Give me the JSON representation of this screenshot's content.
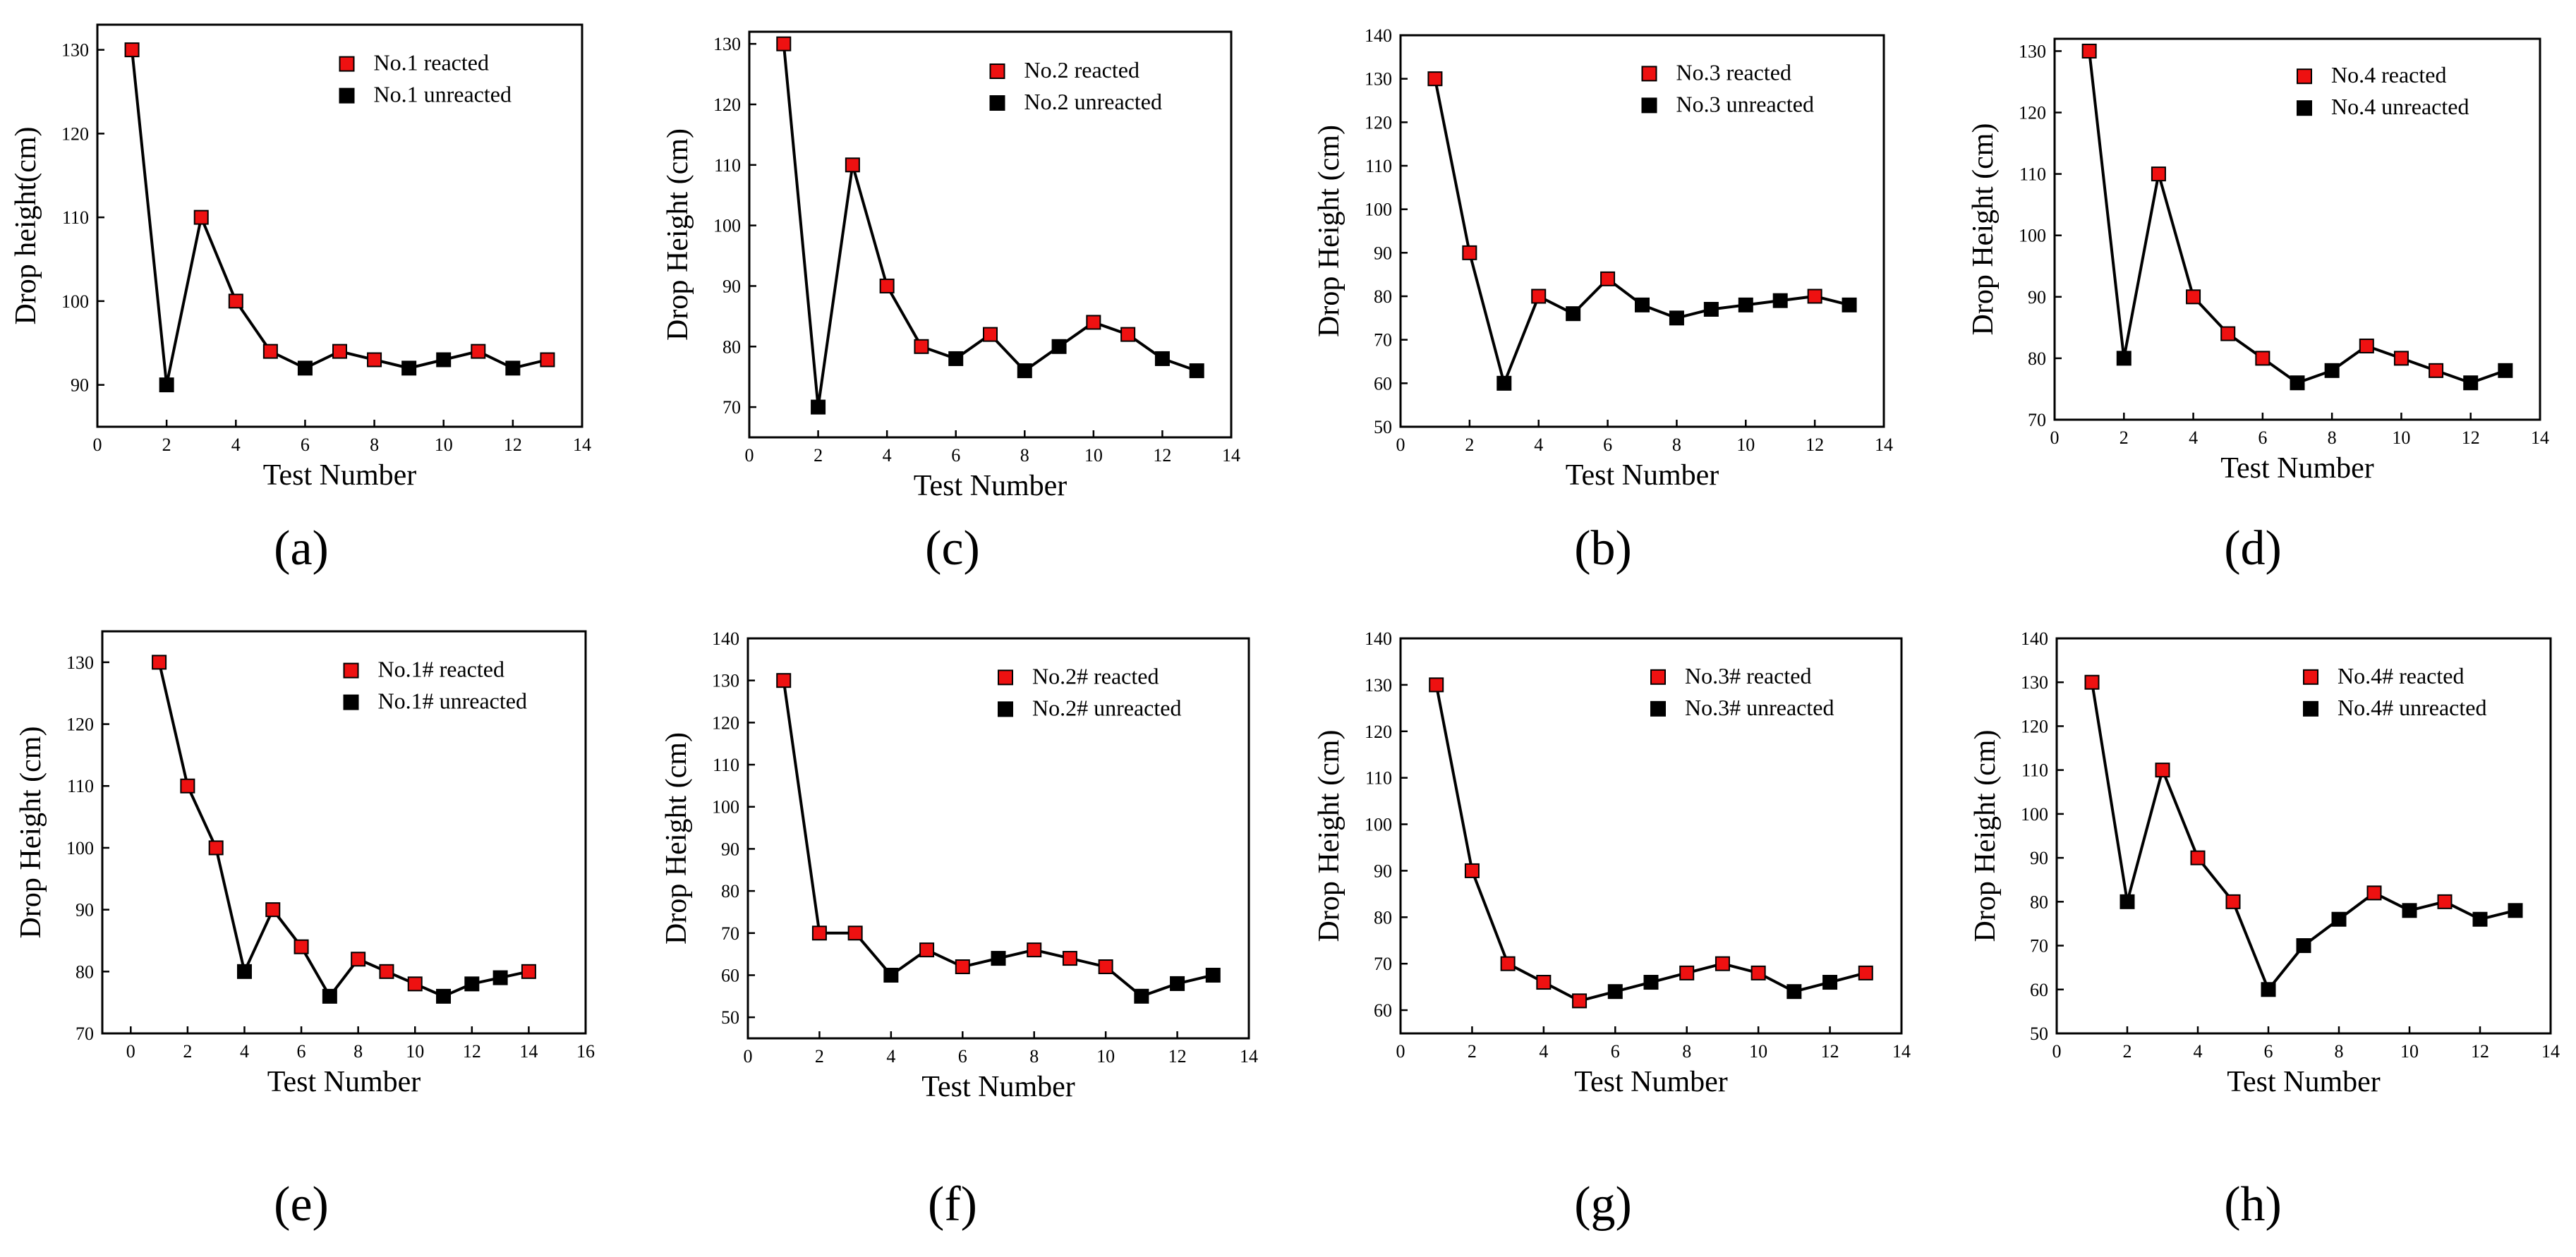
{
  "colors": {
    "reacted": "#ee1111",
    "unreacted": "#000000",
    "axis": "#000000"
  },
  "chart_data": [
    {
      "panel": "a",
      "caption": "(a)",
      "type": "line",
      "xlabel": "Test Number",
      "ylabel": "Drop height(cm)",
      "xlim": [
        0,
        14
      ],
      "ylim": [
        85,
        133
      ],
      "xticks": [
        0,
        2,
        4,
        6,
        8,
        10,
        12,
        14
      ],
      "yticks": [
        90,
        100,
        110,
        120,
        130
      ],
      "xtick_labels": [
        "0",
        "2",
        "4",
        "6",
        "8",
        "10",
        "12",
        "14"
      ],
      "ytick_labels": [
        "90",
        "100",
        "110",
        "120",
        "130"
      ],
      "legend": {
        "reacted": "No.1 reacted",
        "unreacted": "No.1 unreacted"
      },
      "x": [
        1,
        2,
        3,
        4,
        5,
        6,
        7,
        8,
        9,
        10,
        11,
        12,
        13
      ],
      "y": [
        130,
        90,
        110,
        100,
        94,
        92,
        94,
        93,
        92,
        93,
        94,
        92,
        93
      ],
      "status": [
        "r",
        "u",
        "r",
        "r",
        "r",
        "u",
        "r",
        "r",
        "u",
        "u",
        "r",
        "u",
        "r"
      ]
    },
    {
      "panel": "c",
      "caption": "(c)",
      "type": "line",
      "xlabel": "Test Number",
      "ylabel": "Drop Height (cm)",
      "xlim": [
        0,
        14
      ],
      "ylim": [
        65,
        132
      ],
      "xticks": [
        0,
        2,
        4,
        6,
        8,
        10,
        12,
        14
      ],
      "yticks": [
        70,
        80,
        90,
        100,
        110,
        120,
        130
      ],
      "xtick_labels": [
        "0",
        "2",
        "4",
        "6",
        "8",
        "10",
        "12",
        "14"
      ],
      "ytick_labels": [
        "70",
        "80",
        "90",
        "100",
        "110",
        "120",
        "130"
      ],
      "legend": {
        "reacted": "No.2 reacted",
        "unreacted": "No.2 unreacted"
      },
      "x": [
        1,
        2,
        3,
        4,
        5,
        6,
        7,
        8,
        9,
        10,
        11,
        12,
        13
      ],
      "y": [
        130,
        70,
        110,
        90,
        80,
        78,
        82,
        76,
        80,
        84,
        82,
        78,
        76
      ],
      "status": [
        "r",
        "u",
        "r",
        "r",
        "r",
        "u",
        "r",
        "u",
        "u",
        "r",
        "r",
        "u",
        "u"
      ]
    },
    {
      "panel": "b",
      "caption": "(b)",
      "type": "line",
      "xlabel": "Test Number",
      "ylabel": "Drop Height (cm)",
      "xlim": [
        0,
        14
      ],
      "ylim": [
        50,
        140
      ],
      "xticks": [
        0,
        2,
        4,
        6,
        8,
        10,
        12,
        14
      ],
      "yticks": [
        50,
        60,
        70,
        80,
        90,
        100,
        110,
        120,
        130,
        140
      ],
      "xtick_labels": [
        "0",
        "2",
        "4",
        "6",
        "8",
        "10",
        "12",
        "14"
      ],
      "ytick_labels": [
        "50",
        "60",
        "70",
        "80",
        "90",
        "100",
        "110",
        "120",
        "130",
        "140"
      ],
      "legend": {
        "reacted": "No.3 reacted",
        "unreacted": "No.3 unreacted"
      },
      "x": [
        1,
        2,
        3,
        4,
        5,
        6,
        7,
        8,
        9,
        10,
        11,
        12,
        13
      ],
      "y": [
        130,
        90,
        60,
        80,
        76,
        84,
        78,
        75,
        77,
        78,
        79,
        80,
        78
      ],
      "status": [
        "r",
        "r",
        "u",
        "r",
        "u",
        "r",
        "u",
        "u",
        "u",
        "u",
        "u",
        "r",
        "u"
      ]
    },
    {
      "panel": "d",
      "caption": "(d)",
      "type": "line",
      "xlabel": "Test Number",
      "ylabel": "Drop Height (cm)",
      "xlim": [
        0,
        14
      ],
      "ylim": [
        70,
        132
      ],
      "xticks": [
        0,
        2,
        4,
        6,
        8,
        10,
        12,
        14
      ],
      "yticks": [
        70,
        80,
        90,
        100,
        110,
        120,
        130
      ],
      "xtick_labels": [
        "0",
        "2",
        "4",
        "6",
        "8",
        "10",
        "12",
        "14"
      ],
      "ytick_labels": [
        "70",
        "80",
        "90",
        "100",
        "110",
        "120",
        "130"
      ],
      "legend": {
        "reacted": "No.4 reacted",
        "unreacted": "No.4 unreacted"
      },
      "x": [
        1,
        2,
        3,
        4,
        5,
        6,
        7,
        8,
        9,
        10,
        11,
        12,
        13
      ],
      "y": [
        130,
        80,
        110,
        90,
        84,
        80,
        76,
        78,
        82,
        80,
        78,
        76,
        78
      ],
      "status": [
        "r",
        "u",
        "r",
        "r",
        "r",
        "r",
        "u",
        "u",
        "r",
        "r",
        "r",
        "u",
        "u"
      ]
    },
    {
      "panel": "e",
      "caption": "(e)",
      "type": "line",
      "xlabel": "Test Number",
      "ylabel": "Drop Height (cm)",
      "xlim": [
        -1,
        16
      ],
      "ylim": [
        70,
        135
      ],
      "xticks": [
        0,
        2,
        4,
        6,
        8,
        10,
        12,
        14,
        16
      ],
      "yticks": [
        70,
        80,
        90,
        100,
        110,
        120,
        130
      ],
      "xtick_labels": [
        "0",
        "2",
        "4",
        "6",
        "8",
        "10",
        "12",
        "14",
        "16"
      ],
      "ytick_labels": [
        "70",
        "80",
        "90",
        "100",
        "110",
        "120",
        "130"
      ],
      "legend": {
        "reacted": "No.1# reacted",
        "unreacted": "No.1# unreacted"
      },
      "x": [
        1,
        2,
        3,
        4,
        5,
        6,
        7,
        8,
        9,
        10,
        11,
        12,
        13,
        14
      ],
      "y": [
        130,
        110,
        100,
        80,
        90,
        84,
        76,
        82,
        80,
        78,
        76,
        78,
        79,
        80
      ],
      "status": [
        "r",
        "r",
        "r",
        "u",
        "r",
        "r",
        "u",
        "r",
        "r",
        "r",
        "u",
        "u",
        "u",
        "r"
      ]
    },
    {
      "panel": "f",
      "caption": "(f)",
      "type": "line",
      "xlabel": "Test Number",
      "ylabel": "Drop Height (cm)",
      "xlim": [
        0,
        14
      ],
      "ylim": [
        45,
        140
      ],
      "xticks": [
        0,
        2,
        4,
        6,
        8,
        10,
        12,
        14
      ],
      "yticks": [
        50,
        60,
        70,
        80,
        90,
        100,
        110,
        120,
        130,
        140
      ],
      "xtick_labels": [
        "0",
        "2",
        "4",
        "6",
        "8",
        "10",
        "12",
        "14"
      ],
      "ytick_labels": [
        "50",
        "60",
        "70",
        "80",
        "90",
        "100",
        "110",
        "120",
        "130",
        "140"
      ],
      "legend": {
        "reacted": "No.2# reacted",
        "unreacted": "No.2# unreacted"
      },
      "x": [
        1,
        2,
        3,
        4,
        5,
        6,
        7,
        8,
        9,
        10,
        11,
        12,
        13
      ],
      "y": [
        130,
        70,
        70,
        60,
        66,
        62,
        64,
        66,
        64,
        62,
        55,
        58,
        60
      ],
      "status": [
        "r",
        "r",
        "r",
        "u",
        "r",
        "r",
        "u",
        "r",
        "r",
        "r",
        "u",
        "u",
        "u"
      ]
    },
    {
      "panel": "g",
      "caption": "(g)",
      "type": "line",
      "xlabel": "Test Number",
      "ylabel": "Drop Height (cm)",
      "xlim": [
        0,
        14
      ],
      "ylim": [
        55,
        140
      ],
      "xticks": [
        0,
        2,
        4,
        6,
        8,
        10,
        12,
        14
      ],
      "yticks": [
        60,
        70,
        80,
        90,
        100,
        110,
        120,
        130,
        140
      ],
      "xtick_labels": [
        "0",
        "2",
        "4",
        "6",
        "8",
        "10",
        "12",
        "14"
      ],
      "ytick_labels": [
        "60",
        "70",
        "80",
        "90",
        "100",
        "110",
        "120",
        "130",
        "140"
      ],
      "legend": {
        "reacted": "No.3# reacted",
        "unreacted": "No.3# unreacted"
      },
      "x": [
        1,
        2,
        3,
        4,
        5,
        6,
        7,
        8,
        9,
        10,
        11,
        12,
        13
      ],
      "y": [
        130,
        90,
        70,
        66,
        62,
        64,
        66,
        68,
        70,
        68,
        64,
        66,
        68
      ],
      "status": [
        "r",
        "r",
        "r",
        "r",
        "r",
        "u",
        "u",
        "r",
        "r",
        "r",
        "u",
        "u",
        "r"
      ]
    },
    {
      "panel": "h",
      "caption": "(h)",
      "type": "line",
      "xlabel": "Test Number",
      "ylabel": "Drop Height (cm)",
      "xlim": [
        0,
        14
      ],
      "ylim": [
        50,
        140
      ],
      "xticks": [
        0,
        2,
        4,
        6,
        8,
        10,
        12,
        14
      ],
      "yticks": [
        50,
        60,
        70,
        80,
        90,
        100,
        110,
        120,
        130,
        140
      ],
      "xtick_labels": [
        "0",
        "2",
        "4",
        "6",
        "8",
        "10",
        "12",
        "14"
      ],
      "ytick_labels": [
        "50",
        "60",
        "70",
        "80",
        "90",
        "100",
        "110",
        "120",
        "130",
        "140"
      ],
      "legend": {
        "reacted": "No.4# reacted",
        "unreacted": "No.4# unreacted"
      },
      "x": [
        1,
        2,
        3,
        4,
        5,
        6,
        7,
        8,
        9,
        10,
        11,
        12,
        13
      ],
      "y": [
        130,
        80,
        110,
        90,
        80,
        60,
        70,
        76,
        82,
        78,
        80,
        76,
        78
      ],
      "status": [
        "r",
        "u",
        "r",
        "r",
        "r",
        "u",
        "u",
        "u",
        "r",
        "u",
        "r",
        "u",
        "u"
      ]
    }
  ]
}
